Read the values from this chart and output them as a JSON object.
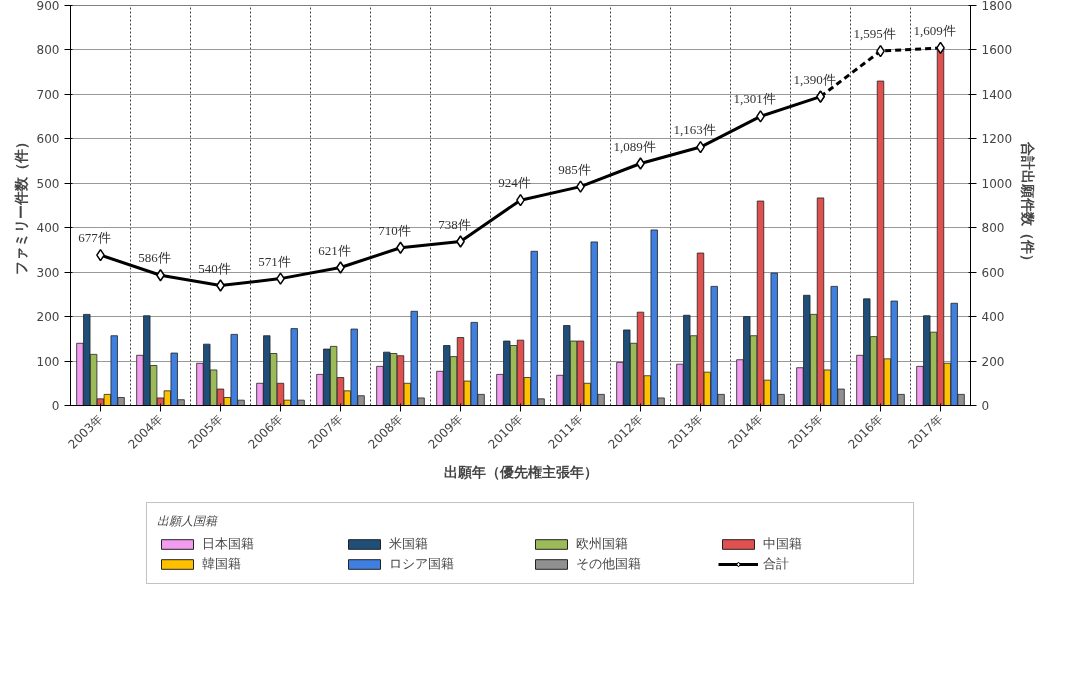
{
  "chart_data": {
    "type": "bar",
    "xlabel": "出願年（優先権主張年）",
    "ylabel": "ファミリー件数（件）",
    "y2label": "合計出願件数（件）",
    "legend_title": "出願人国籍",
    "legend": "bottom",
    "grid": true,
    "categories": [
      "2003年",
      "2004年",
      "2005年",
      "2006年",
      "2007年",
      "2008年",
      "2009年",
      "2010年",
      "2011年",
      "2012年",
      "2013年",
      "2014年",
      "2015年",
      "2016年",
      "2017年"
    ],
    "ylim": [
      0,
      900
    ],
    "yticks": [
      0,
      100,
      200,
      300,
      400,
      500,
      600,
      700,
      800,
      900
    ],
    "y2lim": [
      0,
      1800
    ],
    "y2ticks": [
      0,
      200,
      400,
      600,
      800,
      1000,
      1200,
      1400,
      1600,
      1800
    ],
    "series": [
      {
        "name": "日本国籍",
        "color": "#f29cf0",
        "values": [
          140,
          113,
          95,
          50,
          70,
          88,
          77,
          70,
          68,
          97,
          93,
          103,
          85,
          113,
          88
        ]
      },
      {
        "name": "米国籍",
        "color": "#1f4e79",
        "values": [
          205,
          202,
          138,
          157,
          127,
          120,
          135,
          145,
          180,
          170,
          203,
          200,
          248,
          240,
          202
        ]
      },
      {
        "name": "欧州国籍",
        "color": "#9bbb59",
        "values": [
          115,
          90,
          80,
          117,
          133,
          117,
          110,
          135,
          145,
          140,
          157,
          157,
          205,
          155,
          165
        ]
      },
      {
        "name": "中国籍",
        "color": "#e0504f",
        "values": [
          15,
          17,
          37,
          50,
          63,
          112,
          153,
          147,
          145,
          210,
          343,
          460,
          467,
          730,
          805
        ]
      },
      {
        "name": "韓国籍",
        "color": "#ffc000",
        "values": [
          25,
          33,
          18,
          12,
          33,
          50,
          55,
          63,
          50,
          67,
          75,
          57,
          80,
          105,
          95
        ]
      },
      {
        "name": "ロシア国籍",
        "color": "#3f7fe0",
        "values": [
          157,
          118,
          160,
          173,
          172,
          212,
          187,
          347,
          368,
          395,
          268,
          298,
          268,
          235,
          230
        ]
      },
      {
        "name": "その他国籍",
        "color": "#909090",
        "values": [
          18,
          13,
          12,
          12,
          22,
          17,
          25,
          15,
          25,
          17,
          25,
          25,
          37,
          25,
          25
        ]
      },
      {
        "name": "合計",
        "type": "line",
        "axis": "y2",
        "color": "#000000",
        "marker": "diamond",
        "line_style": "solid",
        "values": [
          677,
          586,
          540,
          571,
          621,
          710,
          738,
          924,
          985,
          1089,
          1163,
          1301,
          1390,
          null,
          null
        ],
        "value_labels": [
          "677件",
          "586件",
          "540件",
          "571件",
          "621件",
          "710件",
          "738件",
          "924件",
          "985件",
          "1,089件",
          "1,163件",
          "1,301件",
          "1,390件",
          null,
          null
        ]
      },
      {
        "type": "line",
        "axis": "y2",
        "color": "#000000",
        "marker": "diamond",
        "line_style": "dashed",
        "values": [
          null,
          null,
          null,
          null,
          null,
          null,
          null,
          null,
          null,
          null,
          null,
          null,
          1390,
          1595,
          1609
        ],
        "value_labels": [
          null,
          null,
          null,
          null,
          null,
          null,
          null,
          null,
          null,
          null,
          null,
          null,
          null,
          "1,595件",
          "1,609件"
        ]
      }
    ]
  }
}
